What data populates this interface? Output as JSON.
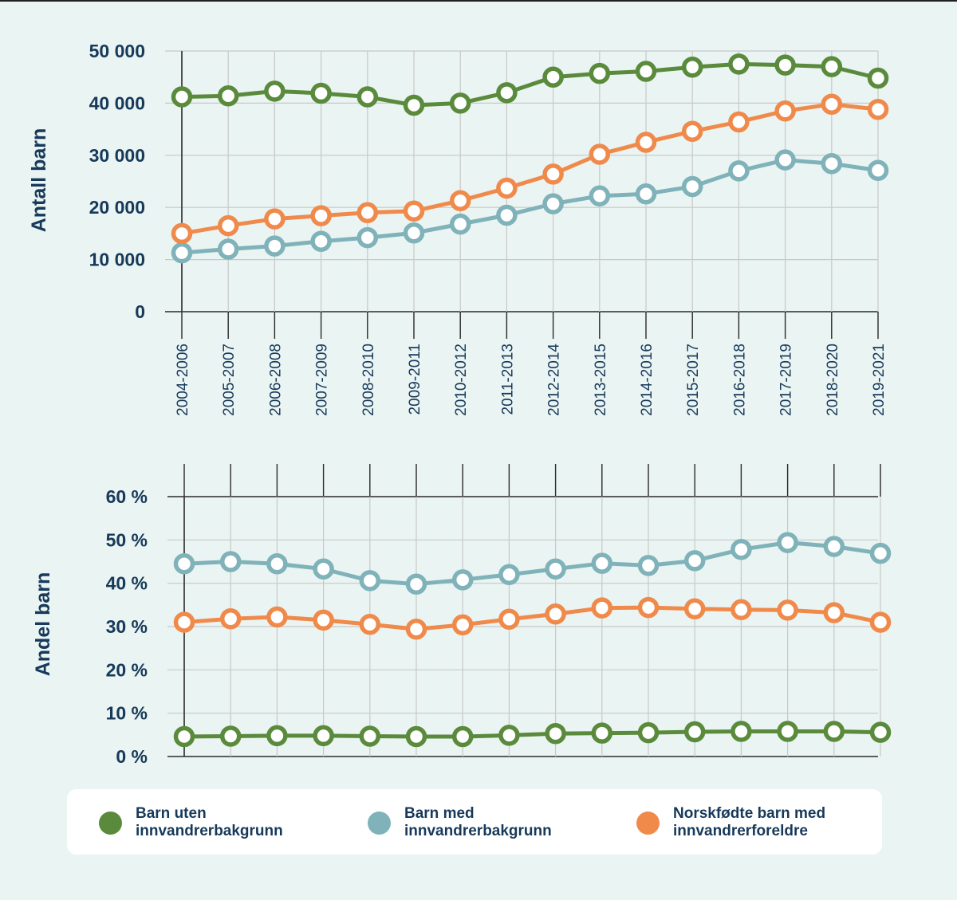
{
  "chart_data": [
    {
      "type": "line",
      "ylabel": "Antall barn",
      "ylim": [
        0,
        50000
      ],
      "y_ticks": [
        "0",
        "10 000",
        "20 000",
        "30 000",
        "40 000",
        "50 000"
      ],
      "y_tick_values": [
        0,
        10000,
        20000,
        30000,
        40000,
        50000
      ],
      "categories": [
        "2004-2006",
        "2005-2007",
        "2006-2008",
        "2007-2009",
        "2008-2010",
        "2009-2011",
        "2010-2012",
        "2011-2013",
        "2012-2014",
        "2013-2015",
        "2014-2016",
        "2015-2017",
        "2016-2018",
        "2017-2019",
        "2018-2020",
        "2019-2021"
      ],
      "grid": true,
      "series": [
        {
          "name": "Barn uten innvandrerbakgrunn",
          "color": "#5a8a3c",
          "values": [
            41200,
            41400,
            42300,
            41900,
            41200,
            39600,
            40000,
            42000,
            45000,
            45700,
            46100,
            46900,
            47500,
            47300,
            47000,
            44800
          ]
        },
        {
          "name": "Barn med innvandrerbakgrunn",
          "color": "#7fb2b9",
          "values": [
            11300,
            12000,
            12600,
            13500,
            14200,
            15100,
            16800,
            18500,
            20700,
            22200,
            22600,
            24000,
            27000,
            29100,
            28400,
            27100
          ]
        },
        {
          "name": "Norskfødte barn med innvandrerforeldre",
          "color": "#f08a4b",
          "values": [
            15000,
            16500,
            17800,
            18400,
            19000,
            19300,
            21300,
            23700,
            26400,
            30200,
            32500,
            34600,
            36400,
            38500,
            39800,
            38800
          ]
        }
      ]
    },
    {
      "type": "line",
      "ylabel": "Andel barn",
      "ylim": [
        0,
        60
      ],
      "y_ticks": [
        "0 %",
        "10 %",
        "20 %",
        "30 %",
        "40 %",
        "50 %",
        "60 %"
      ],
      "y_tick_values": [
        0,
        10,
        20,
        30,
        40,
        50,
        60
      ],
      "categories": [
        "2004-2006",
        "2005-2007",
        "2006-2008",
        "2007-2009",
        "2008-2010",
        "2009-2011",
        "2010-2012",
        "2011-2013",
        "2012-2014",
        "2013-2015",
        "2014-2016",
        "2015-2017",
        "2016-2018",
        "2017-2019",
        "2018-2020",
        "2019-2021"
      ],
      "grid": true,
      "series": [
        {
          "name": "Barn uten innvandrerbakgrunn",
          "color": "#5a8a3c",
          "values": [
            4.6,
            4.7,
            4.8,
            4.8,
            4.7,
            4.6,
            4.6,
            4.9,
            5.3,
            5.4,
            5.5,
            5.7,
            5.8,
            5.8,
            5.8,
            5.6
          ]
        },
        {
          "name": "Barn med innvandrerbakgrunn",
          "color": "#7fb2b9",
          "values": [
            44.5,
            45.0,
            44.5,
            43.3,
            40.6,
            39.8,
            40.8,
            42.0,
            43.3,
            44.6,
            44.1,
            45.2,
            47.8,
            49.4,
            48.5,
            46.9
          ]
        },
        {
          "name": "Norskfødte barn med innvandrerforeldre",
          "color": "#f08a4b",
          "values": [
            31.0,
            31.8,
            32.2,
            31.5,
            30.5,
            29.4,
            30.4,
            31.7,
            32.9,
            34.3,
            34.4,
            34.1,
            33.9,
            33.8,
            33.2,
            31.0
          ]
        }
      ]
    }
  ],
  "legend": [
    {
      "line1": "Barn uten",
      "line2": "innvandrerbakgrunn",
      "color": "#5a8a3c",
      "icon": "circle"
    },
    {
      "line1": "Barn med",
      "line2": "innvandrerbakgrunn",
      "color": "#7fb2b9",
      "icon": "circle"
    },
    {
      "line1": "Norskfødte barn med",
      "line2": "innvandrerforeldre",
      "color": "#f08a4b",
      "icon": "circle"
    }
  ]
}
